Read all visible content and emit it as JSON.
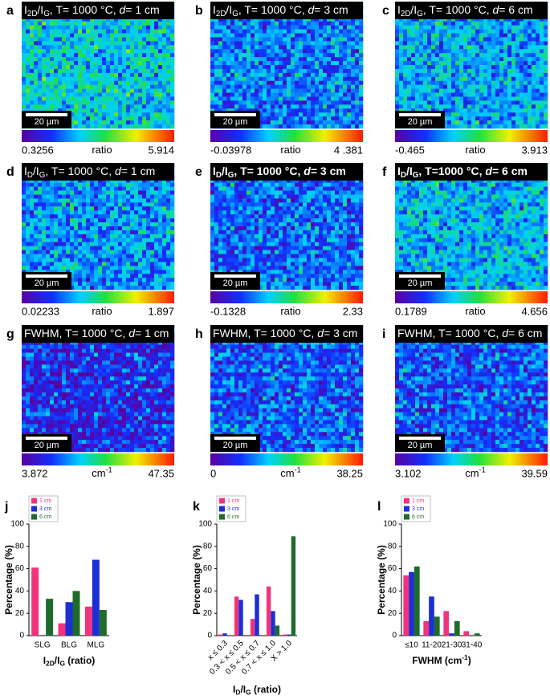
{
  "maps": [
    {
      "letter": "a",
      "title": [
        "I",
        {
          "sub": "2D"
        },
        "/I",
        {
          "sub": "G"
        },
        ", T= 1000 °C, ",
        {
          "italic": "d"
        },
        "= 1 cm"
      ],
      "scale_bar": "20 µm",
      "min": 0.3256,
      "unit": [
        "ratio"
      ],
      "max": 5.914
    },
    {
      "letter": "b",
      "title": [
        "I",
        {
          "sub": "2D"
        },
        "/I",
        {
          "sub": "G"
        },
        ", T= 1000 °C, ",
        {
          "italic": "d"
        },
        "= 3 cm"
      ],
      "scale_bar": "20 µm",
      "min": -0.03978,
      "unit": [
        "ratio"
      ],
      "max": {
        "value": 4.381,
        "label": "4 .381"
      }
    },
    {
      "letter": "c",
      "title": [
        "I",
        {
          "sub": "2D"
        },
        "/I",
        {
          "sub": "G"
        },
        ", T= 1000 °C, ",
        {
          "italic": "d"
        },
        "= 6 cm"
      ],
      "scale_bar": "20 µm",
      "min": -0.465,
      "unit": [
        "ratio"
      ],
      "max": 3.913
    },
    {
      "letter": "d",
      "title": [
        "I",
        {
          "sub": "D"
        },
        "/I",
        {
          "sub": "G"
        },
        ", T= 1000 °C, ",
        {
          "italic": "d"
        },
        "= 1 cm"
      ],
      "scale_bar": "20 µm",
      "min": 0.02233,
      "unit": [
        "ratio"
      ],
      "max": 1.897
    },
    {
      "letter": "e",
      "bold": true,
      "title": [
        "I",
        {
          "sub": "D"
        },
        "/I",
        {
          "sub": "G"
        },
        ", T= 1000 °C, ",
        {
          "italic": "d"
        },
        "= 3 cm"
      ],
      "scale_bar": "20 µm",
      "min": -0.1328,
      "unit": [
        "ratio"
      ],
      "max": 2.33
    },
    {
      "letter": "f",
      "bold": true,
      "title": [
        "I",
        {
          "sub": "D"
        },
        "/I",
        {
          "sub": "G"
        },
        ", T=1000 °C, ",
        {
          "italic": "d"
        },
        "= 6 cm"
      ],
      "scale_bar": "20 µm",
      "min": 0.1789,
      "unit": [
        "ratio"
      ],
      "max": 4.656
    },
    {
      "letter": "g",
      "title": [
        "FWHM, T= 1000 °C, ",
        {
          "italic": "d"
        },
        "= 1 cm"
      ],
      "scale_bar": "20 µm",
      "min": 3.872,
      "unit": [
        "cm",
        {
          "sup": "-1"
        }
      ],
      "max": 47.35
    },
    {
      "letter": "h",
      "title": [
        "FWHM, T= 1000 °C, ",
        {
          "italic": "d"
        },
        "= 3 cm"
      ],
      "scale_bar": "20 µm",
      "min": 0,
      "unit": [
        "cm",
        {
          "sup": "-1"
        }
      ],
      "max": 38.25
    },
    {
      "letter": "i",
      "title": [
        "FWHM, T= 1000 °C, ",
        {
          "italic": "d"
        },
        "= 6 cm"
      ],
      "scale_bar": "20 µm",
      "min": 3.102,
      "unit": [
        "cm",
        {
          "sup": "-1"
        }
      ],
      "max": 39.59
    }
  ],
  "chart_data": [
    {
      "type": "bar",
      "letter": "j",
      "ylabel": "Percentage (%)",
      "xlabel": [
        "I",
        {
          "sub": "2D"
        },
        "/I",
        {
          "sub": "G"
        },
        " (ratio)"
      ],
      "categories": [
        "SLG",
        "BLG",
        "MLG"
      ],
      "ylim": [
        0,
        100
      ],
      "yticks": [
        0,
        20,
        40,
        60,
        80,
        100
      ],
      "series": [
        {
          "name": "1 cm",
          "color": "#f2337c",
          "values": [
            61,
            11,
            26
          ]
        },
        {
          "name": "3 cm",
          "color": "#1b2fd4",
          "values": [
            0,
            30,
            68
          ]
        },
        {
          "name": "6 cm",
          "color": "#1f6b2c",
          "values": [
            33,
            40,
            23
          ]
        }
      ]
    },
    {
      "type": "bar",
      "letter": "k",
      "ylabel": "Percentage (%)",
      "xlabel": [
        "I",
        {
          "sub": "D"
        },
        "/I",
        {
          "sub": "G"
        },
        " (ratio)"
      ],
      "rotate_labels": true,
      "categories": [
        "x ≤ 0.3",
        "0.3 < x ≤ 0.5",
        "0.5 < x ≤ 0.7",
        "0.7 < x ≤ 1.0",
        "X > 1.0"
      ],
      "ylim": [
        0,
        100
      ],
      "yticks": [
        0,
        20,
        40,
        60,
        80,
        100
      ],
      "series": [
        {
          "name": "1 cm",
          "color": "#f2337c",
          "values": [
            1,
            35,
            15,
            44,
            1
          ]
        },
        {
          "name": "3 cm",
          "color": "#1b2fd4",
          "values": [
            2,
            32,
            37,
            22,
            1
          ]
        },
        {
          "name": "6 cm",
          "color": "#1f6b2c",
          "values": [
            0,
            0,
            0,
            9,
            89
          ]
        }
      ]
    },
    {
      "type": "bar",
      "letter": "l",
      "ylabel": "Percentage (%)",
      "xlabel": [
        "FWHM (cm",
        {
          "sup": "-1"
        },
        ")"
      ],
      "categories": [
        "≤10",
        "11-20",
        "21-30",
        "31-40"
      ],
      "ylim": [
        0,
        100
      ],
      "yticks": [
        0,
        20,
        40,
        60,
        80,
        100
      ],
      "series": [
        {
          "name": "1 cm",
          "color": "#f2337c",
          "values": [
            54,
            13,
            22,
            4
          ]
        },
        {
          "name": "3 cm",
          "color": "#1b2fd4",
          "values": [
            57,
            35,
            2,
            0
          ]
        },
        {
          "name": "6 cm",
          "color": "#1f6b2c",
          "values": [
            62,
            17,
            13,
            2
          ]
        }
      ]
    }
  ]
}
